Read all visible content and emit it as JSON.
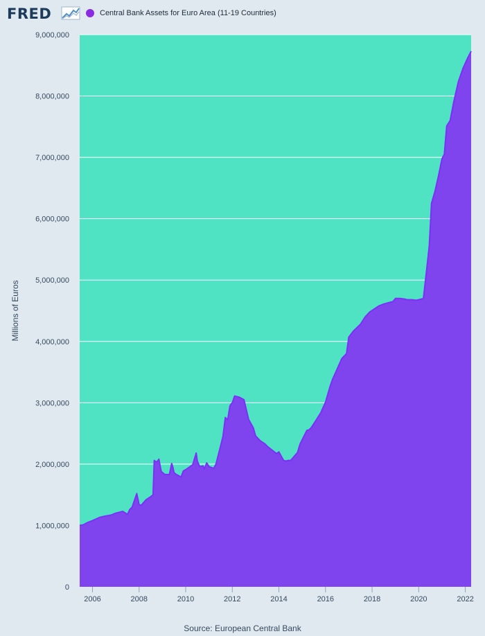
{
  "header": {
    "logo_text": "FRED",
    "legend_label": "Central Bank Assets for Euro Area (11-19 Countries)",
    "legend_color": "#8a2be2"
  },
  "colors": {
    "background": "#e1e9f0",
    "plot_bg": "#4fe3c3",
    "area_fill": "#7f44ee",
    "line": "#7b2ff7",
    "grid": "#ffffff"
  },
  "source": "Source: European Central Bank",
  "chart_data": {
    "type": "area",
    "title": "Central Bank Assets for Euro Area (11-19 Countries)",
    "ylabel": "Millions of Euros",
    "xlabel": "",
    "xlim": [
      2005.45,
      2022.25
    ],
    "ylim": [
      0,
      9000000
    ],
    "x_ticks": [
      2006,
      2008,
      2010,
      2012,
      2014,
      2016,
      2018,
      2020,
      2022
    ],
    "x_tick_labels": [
      "2006",
      "2008",
      "2010",
      "2012",
      "2014",
      "2016",
      "2018",
      "2020",
      "2022"
    ],
    "y_ticks": [
      0,
      1000000,
      2000000,
      3000000,
      4000000,
      5000000,
      6000000,
      7000000,
      8000000,
      9000000
    ],
    "y_tick_labels": [
      "0",
      "1,000,000",
      "2,000,000",
      "3,000,000",
      "4,000,000",
      "5,000,000",
      "6,000,000",
      "7,000,000",
      "8,000,000",
      "9,000,000"
    ],
    "grid": true,
    "series": [
      {
        "name": "Central Bank Assets for Euro Area (11-19 Countries)",
        "x": [
          2005.45,
          2005.6,
          2005.8,
          2006.0,
          2006.3,
          2006.5,
          2006.8,
          2007.0,
          2007.3,
          2007.5,
          2007.6,
          2007.7,
          2007.9,
          2008.0,
          2008.1,
          2008.3,
          2008.5,
          2008.6,
          2008.65,
          2008.75,
          2008.85,
          2008.95,
          2009.1,
          2009.3,
          2009.4,
          2009.45,
          2009.5,
          2009.6,
          2009.8,
          2009.9,
          2010.0,
          2010.3,
          2010.45,
          2010.5,
          2010.6,
          2010.75,
          2010.8,
          2010.9,
          2011.0,
          2011.2,
          2011.3,
          2011.5,
          2011.6,
          2011.7,
          2011.8,
          2011.9,
          2011.95,
          2012.0,
          2012.1,
          2012.2,
          2012.3,
          2012.5,
          2012.7,
          2012.9,
          2013.0,
          2013.2,
          2013.4,
          2013.5,
          2013.7,
          2013.9,
          2014.0,
          2014.2,
          2014.3,
          2014.4,
          2014.5,
          2014.8,
          2014.9,
          2015.0,
          2015.2,
          2015.3,
          2015.4,
          2015.6,
          2015.8,
          2016.0,
          2016.2,
          2016.3,
          2016.5,
          2016.7,
          2016.9,
          2017.0,
          2017.2,
          2017.5,
          2017.7,
          2017.9,
          2018.1,
          2018.3,
          2018.5,
          2018.7,
          2018.9,
          2019.0,
          2019.2,
          2019.4,
          2019.5,
          2019.7,
          2019.9,
          2020.0,
          2020.2,
          2020.35,
          2020.45,
          2020.55,
          2020.7,
          2020.85,
          2021.0,
          2021.1,
          2021.2,
          2021.35,
          2021.5,
          2021.7,
          2021.9,
          2022.1,
          2022.25
        ],
        "values": [
          1000000,
          1010000,
          1050000,
          1080000,
          1130000,
          1150000,
          1170000,
          1200000,
          1230000,
          1180000,
          1260000,
          1300000,
          1520000,
          1340000,
          1330000,
          1420000,
          1470000,
          1500000,
          2060000,
          2030000,
          2080000,
          1880000,
          1830000,
          1830000,
          2010000,
          1950000,
          1860000,
          1830000,
          1790000,
          1890000,
          1910000,
          1990000,
          2180000,
          2050000,
          1960000,
          1970000,
          1920000,
          2020000,
          1960000,
          1930000,
          2000000,
          2300000,
          2450000,
          2760000,
          2720000,
          2950000,
          2980000,
          3000000,
          3110000,
          3100000,
          3090000,
          3050000,
          2730000,
          2590000,
          2460000,
          2380000,
          2330000,
          2290000,
          2230000,
          2170000,
          2200000,
          2060000,
          2050000,
          2060000,
          2060000,
          2190000,
          2320000,
          2400000,
          2550000,
          2560000,
          2600000,
          2720000,
          2840000,
          3010000,
          3270000,
          3380000,
          3550000,
          3720000,
          3800000,
          4070000,
          4170000,
          4280000,
          4400000,
          4480000,
          4530000,
          4580000,
          4610000,
          4630000,
          4650000,
          4700000,
          4700000,
          4690000,
          4680000,
          4680000,
          4670000,
          4680000,
          4700000,
          5200000,
          5550000,
          6250000,
          6450000,
          6700000,
          6980000,
          7050000,
          7510000,
          7600000,
          7900000,
          8230000,
          8450000,
          8620000,
          8730000
        ]
      }
    ]
  }
}
